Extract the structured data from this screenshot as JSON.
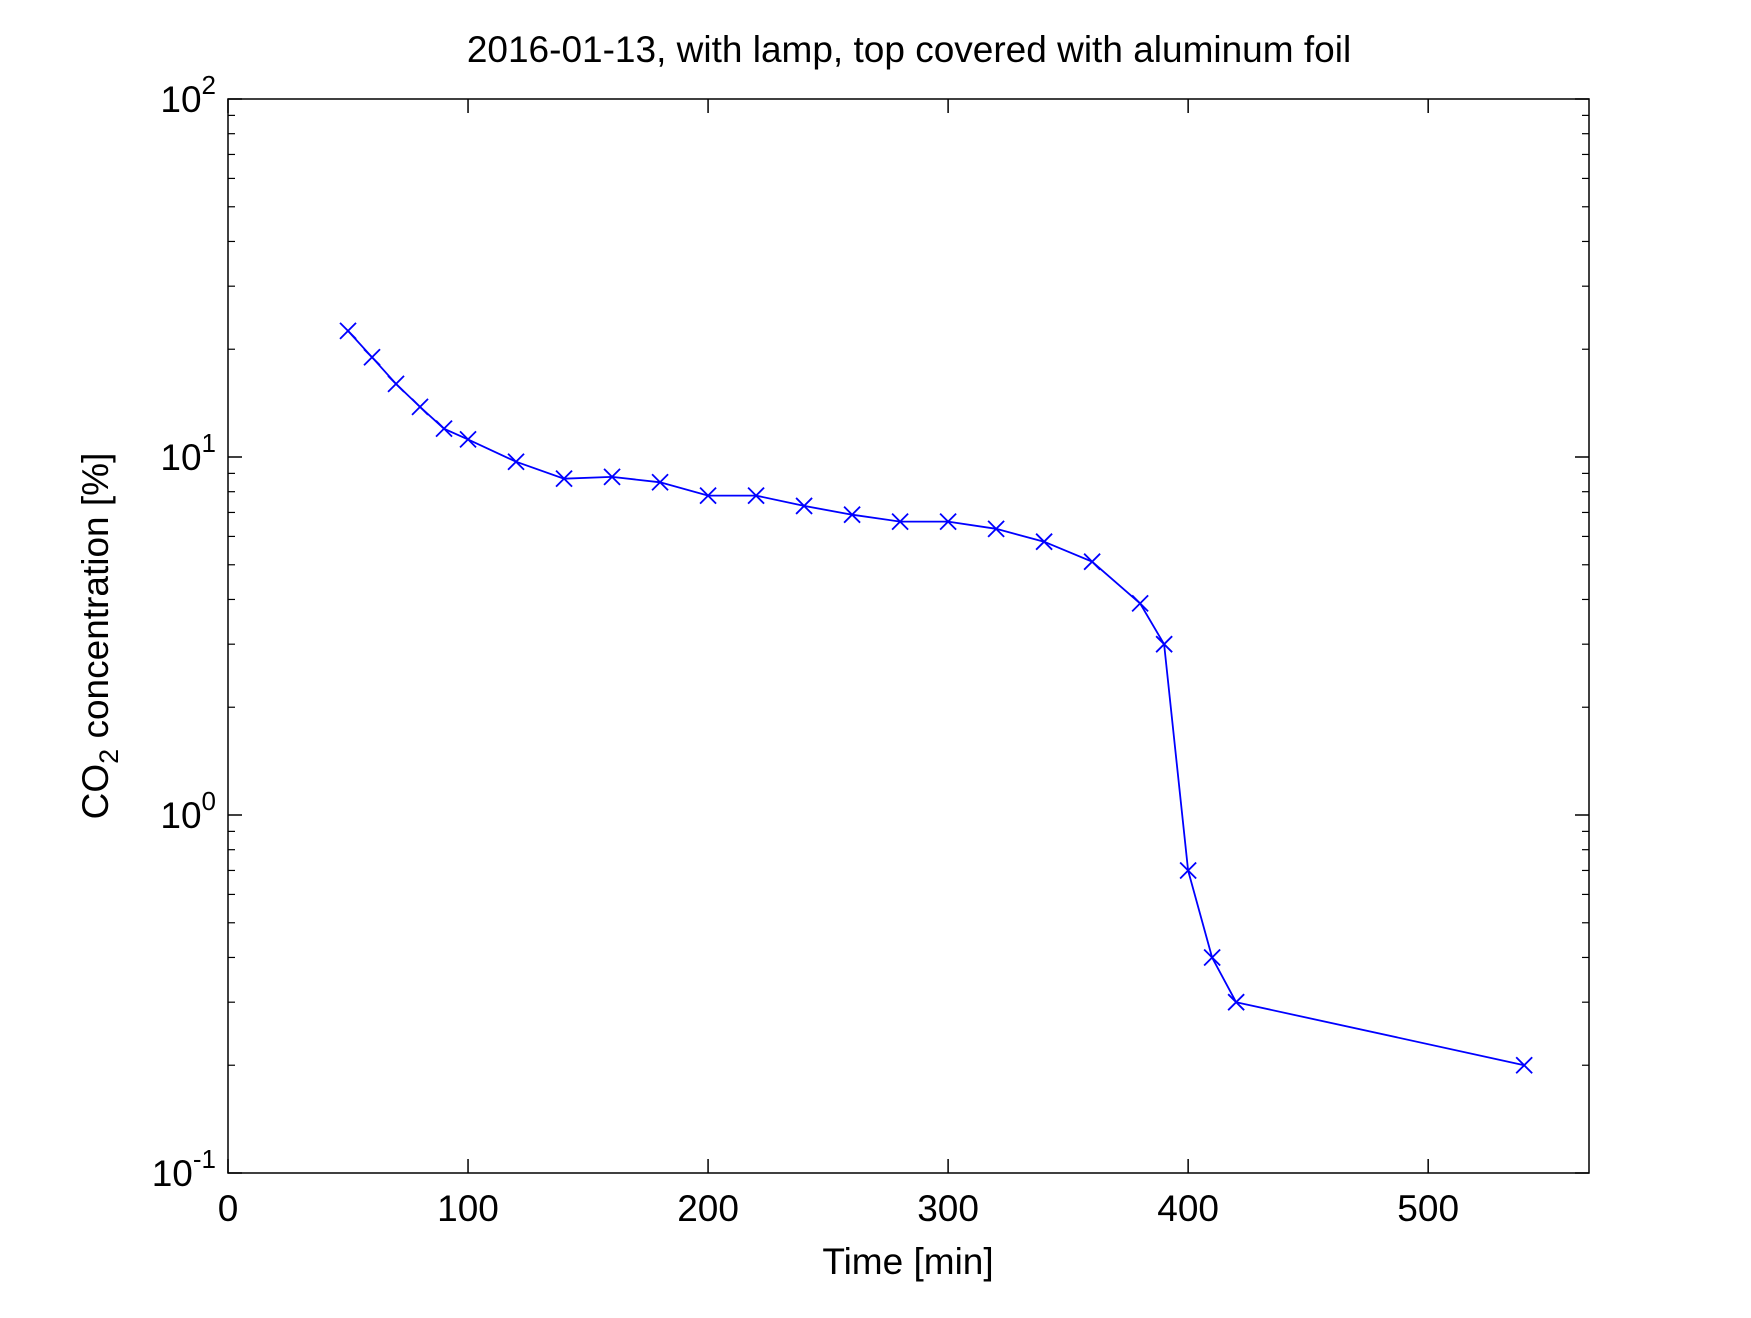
{
  "chart_data": {
    "type": "line",
    "title": "2016-01-13, with lamp, top covered with aluminum foil",
    "xlabel": "Time [min]",
    "ylabel_prefix": "CO",
    "ylabel_subscript": "2",
    "ylabel_suffix": " concentration [%]",
    "x_scale": "linear",
    "y_scale": "log",
    "xlim": [
      0,
      567
    ],
    "ylim": [
      0.1,
      100
    ],
    "x_ticks": [
      0,
      100,
      200,
      300,
      400,
      500
    ],
    "x_tick_labels": [
      "0",
      "100",
      "200",
      "300",
      "400",
      "500"
    ],
    "y_ticks": [
      0.1,
      1,
      10,
      100
    ],
    "y_tick_labels": [
      {
        "base": "10",
        "exp": "-1"
      },
      {
        "base": "10",
        "exp": "0"
      },
      {
        "base": "10",
        "exp": "1"
      },
      {
        "base": "10",
        "exp": "2"
      }
    ],
    "grid": false,
    "marker": "x",
    "line_color": "#0000ff",
    "series": [
      {
        "x": [
          50,
          60,
          70,
          80,
          90,
          100,
          120,
          140,
          160,
          180,
          200,
          220,
          240,
          260,
          280,
          300,
          320,
          340,
          360,
          380,
          390,
          400,
          410,
          420,
          540
        ],
        "y": [
          22.5,
          19,
          16,
          13.8,
          12,
          11.2,
          9.7,
          8.7,
          8.8,
          8.5,
          7.8,
          7.8,
          7.3,
          6.9,
          6.6,
          6.6,
          6.3,
          5.8,
          5.1,
          3.9,
          3.0,
          0.7,
          0.4,
          0.3,
          0.2
        ]
      }
    ]
  }
}
